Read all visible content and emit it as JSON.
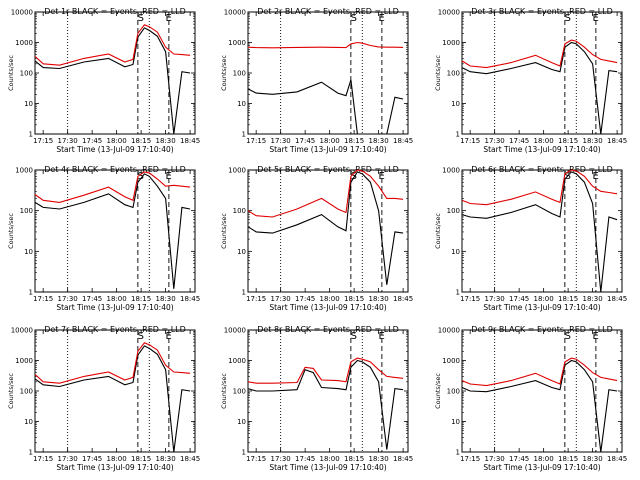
{
  "chart_data": [
    {
      "type": "line",
      "title": "Det 1r BLACK = Events, RED = LLD",
      "xlabel": "Start Time (13-Jul-09 17:10:40)",
      "ylabel": "Counts/sec",
      "yscale": "log",
      "ylim": [
        1,
        10000
      ],
      "x": [
        "17:10",
        "17:15",
        "17:25",
        "17:40",
        "17:55",
        "18:05",
        "18:10",
        "18:13",
        "18:17",
        "18:20",
        "18:25",
        "18:30",
        "18:35",
        "18:40",
        "18:45"
      ],
      "x_ticks": [
        "17:15",
        "17:30",
        "17:45",
        "18:00",
        "18:15",
        "18:30",
        "18:45"
      ],
      "series": [
        {
          "name": "BLACK",
          "color": "#000000",
          "values": [
            250,
            150,
            140,
            230,
            300,
            160,
            190,
            1500,
            3000,
            2500,
            1600,
            500,
            0.9,
            110,
            100
          ]
        },
        {
          "name": "RED",
          "color": "#e00000",
          "values": [
            350,
            200,
            180,
            300,
            420,
            230,
            280,
            2000,
            3800,
            3300,
            2200,
            700,
            420,
            400,
            380
          ]
        }
      ],
      "vlines": [
        {
          "x": "17:30",
          "style": "dotted"
        },
        {
          "x": "18:13",
          "style": "dashed"
        },
        {
          "x": "18:20",
          "style": "dotted"
        },
        {
          "x": "18:32",
          "style": "dashed"
        }
      ],
      "annotations": [
        "S",
        "E"
      ]
    },
    {
      "type": "line",
      "title": "Det 2r BLACK = Events, RED = LLD",
      "xlabel": "Start Time (13-Jul-09 17:10:40)",
      "ylabel": "Counts/sec",
      "yscale": "log",
      "ylim": [
        1,
        10000
      ],
      "x": [
        "17:10",
        "17:15",
        "17:25",
        "17:40",
        "17:55",
        "18:05",
        "18:10",
        "18:13",
        "18:17",
        "18:20",
        "18:25",
        "18:30",
        "18:35",
        "18:40",
        "18:45"
      ],
      "x_ticks": [
        "17:15",
        "17:30",
        "17:45",
        "18:00",
        "18:15",
        "18:30",
        "18:45"
      ],
      "series": [
        {
          "name": "BLACK",
          "color": "#000000",
          "values": [
            30,
            22,
            20,
            24,
            50,
            22,
            18,
            60,
            1,
            1,
            1,
            1,
            1,
            16,
            14
          ]
        },
        {
          "name": "RED",
          "color": "#e00000",
          "values": [
            700,
            680,
            670,
            690,
            700,
            690,
            680,
            900,
            1000,
            950,
            800,
            720,
            700,
            700,
            690
          ]
        }
      ],
      "vlines": [
        {
          "x": "17:30",
          "style": "dotted"
        },
        {
          "x": "18:13",
          "style": "dashed"
        },
        {
          "x": "18:20",
          "style": "dotted"
        },
        {
          "x": "18:32",
          "style": "dashed"
        }
      ],
      "annotations": [
        "S",
        "E"
      ]
    },
    {
      "type": "line",
      "title": "Det 3r BLACK = Events, RED = LLD",
      "xlabel": "Start Time (13-Jul-09 17:10:40)",
      "ylabel": "Counts/sec",
      "yscale": "log",
      "ylim": [
        1,
        10000
      ],
      "x": [
        "17:10",
        "17:15",
        "17:25",
        "17:40",
        "17:55",
        "18:05",
        "18:10",
        "18:13",
        "18:17",
        "18:20",
        "18:25",
        "18:30",
        "18:35",
        "18:40",
        "18:45"
      ],
      "x_ticks": [
        "17:15",
        "17:30",
        "17:45",
        "18:00",
        "18:15",
        "18:30",
        "18:45"
      ],
      "series": [
        {
          "name": "BLACK",
          "color": "#000000",
          "values": [
            150,
            110,
            95,
            140,
            220,
            130,
            110,
            700,
            1000,
            900,
            500,
            200,
            1,
            120,
            110
          ]
        },
        {
          "name": "RED",
          "color": "#e00000",
          "values": [
            250,
            170,
            150,
            220,
            380,
            220,
            170,
            900,
            1200,
            1100,
            700,
            400,
            280,
            250,
            220
          ]
        }
      ],
      "vlines": [
        {
          "x": "17:30",
          "style": "dotted"
        },
        {
          "x": "18:13",
          "style": "dashed"
        },
        {
          "x": "18:20",
          "style": "dotted"
        },
        {
          "x": "18:32",
          "style": "dashed"
        }
      ],
      "annotations": [
        "S",
        "E"
      ]
    },
    {
      "type": "line",
      "title": "Det 4r BLACK = Events, RED = LLD",
      "xlabel": "Start Time (13-Jul-09 17:10:40)",
      "ylabel": "Counts/sec",
      "yscale": "log",
      "ylim": [
        1,
        1000
      ],
      "x": [
        "17:10",
        "17:15",
        "17:25",
        "17:40",
        "17:55",
        "18:05",
        "18:10",
        "18:13",
        "18:17",
        "18:20",
        "18:25",
        "18:30",
        "18:35",
        "18:40",
        "18:45"
      ],
      "x_ticks": [
        "17:15",
        "17:30",
        "17:45",
        "18:00",
        "18:15",
        "18:30",
        "18:45"
      ],
      "series": [
        {
          "name": "BLACK",
          "color": "#000000",
          "values": [
            160,
            120,
            110,
            160,
            260,
            140,
            120,
            500,
            800,
            700,
            400,
            200,
            1.2,
            120,
            110
          ]
        },
        {
          "name": "RED",
          "color": "#e00000",
          "values": [
            250,
            180,
            160,
            240,
            380,
            220,
            180,
            700,
            900,
            850,
            600,
            400,
            420,
            400,
            380
          ]
        }
      ],
      "vlines": [
        {
          "x": "17:30",
          "style": "dotted"
        },
        {
          "x": "18:13",
          "style": "dashed"
        },
        {
          "x": "18:20",
          "style": "dotted"
        },
        {
          "x": "18:32",
          "style": "dashed"
        }
      ],
      "annotations": [
        "S",
        "E"
      ]
    },
    {
      "type": "line",
      "title": "Det 5r BLACK = Events, RED = LLD",
      "xlabel": "Start Time (13-Jul-09 17:10:40)",
      "ylabel": "Counts/sec",
      "yscale": "log",
      "ylim": [
        1,
        1000
      ],
      "x": [
        "17:10",
        "17:15",
        "17:25",
        "17:40",
        "17:55",
        "18:05",
        "18:10",
        "18:13",
        "18:17",
        "18:20",
        "18:25",
        "18:30",
        "18:35",
        "18:40",
        "18:45"
      ],
      "x_ticks": [
        "17:15",
        "17:30",
        "17:45",
        "18:00",
        "18:15",
        "18:30",
        "18:45"
      ],
      "series": [
        {
          "name": "BLACK",
          "color": "#000000",
          "values": [
            40,
            30,
            28,
            45,
            80,
            40,
            32,
            500,
            900,
            800,
            500,
            100,
            1.5,
            30,
            28
          ]
        },
        {
          "name": "RED",
          "color": "#e00000",
          "values": [
            100,
            75,
            70,
            110,
            200,
            110,
            90,
            700,
            1000,
            950,
            700,
            400,
            200,
            200,
            190
          ]
        }
      ],
      "vlines": [
        {
          "x": "17:30",
          "style": "dotted"
        },
        {
          "x": "18:13",
          "style": "dashed"
        },
        {
          "x": "18:20",
          "style": "dotted"
        },
        {
          "x": "18:32",
          "style": "dashed"
        }
      ],
      "annotations": [
        "S",
        "E"
      ]
    },
    {
      "type": "line",
      "title": "Det 6r BLACK = Events, RED = LLD",
      "xlabel": "Start Time (13-Jul-09 17:10:40)",
      "ylabel": "Counts/sec",
      "yscale": "log",
      "ylim": [
        1,
        1000
      ],
      "x": [
        "17:10",
        "17:15",
        "17:25",
        "17:40",
        "17:55",
        "18:05",
        "18:10",
        "18:13",
        "18:17",
        "18:20",
        "18:25",
        "18:30",
        "18:35",
        "18:40",
        "18:45"
      ],
      "x_ticks": [
        "17:15",
        "17:30",
        "17:45",
        "18:00",
        "18:15",
        "18:30",
        "18:45"
      ],
      "series": [
        {
          "name": "BLACK",
          "color": "#000000",
          "values": [
            80,
            70,
            65,
            90,
            140,
            85,
            70,
            600,
            900,
            800,
            500,
            150,
            1,
            70,
            60
          ]
        },
        {
          "name": "RED",
          "color": "#e00000",
          "values": [
            180,
            150,
            140,
            190,
            290,
            190,
            160,
            800,
            1000,
            950,
            700,
            400,
            300,
            280,
            260
          ]
        }
      ],
      "vlines": [
        {
          "x": "17:30",
          "style": "dotted"
        },
        {
          "x": "18:13",
          "style": "dashed"
        },
        {
          "x": "18:20",
          "style": "dotted"
        },
        {
          "x": "18:32",
          "style": "dashed"
        }
      ],
      "annotations": [
        "S",
        "E"
      ]
    },
    {
      "type": "line",
      "title": "Det 7r BLACK = Events, RED = LLD",
      "xlabel": "Start Time (13-Jul-09 17:10:40)",
      "ylabel": "Counts/sec",
      "yscale": "log",
      "ylim": [
        1,
        10000
      ],
      "x": [
        "17:10",
        "17:15",
        "17:25",
        "17:40",
        "17:55",
        "18:05",
        "18:10",
        "18:13",
        "18:17",
        "18:20",
        "18:25",
        "18:30",
        "18:35",
        "18:40",
        "18:45"
      ],
      "x_ticks": [
        "17:15",
        "17:30",
        "17:45",
        "18:00",
        "18:15",
        "18:30",
        "18:45"
      ],
      "series": [
        {
          "name": "BLACK",
          "color": "#000000",
          "values": [
            250,
            160,
            140,
            230,
            300,
            160,
            190,
            1500,
            3000,
            2500,
            1600,
            500,
            0.9,
            110,
            100
          ]
        },
        {
          "name": "RED",
          "color": "#e00000",
          "values": [
            350,
            200,
            180,
            300,
            420,
            230,
            280,
            2000,
            3800,
            3300,
            2200,
            700,
            420,
            400,
            380
          ]
        }
      ],
      "vlines": [
        {
          "x": "17:30",
          "style": "dotted"
        },
        {
          "x": "18:13",
          "style": "dashed"
        },
        {
          "x": "18:20",
          "style": "dotted"
        },
        {
          "x": "18:32",
          "style": "dashed"
        }
      ],
      "annotations": [
        "S",
        "E"
      ]
    },
    {
      "type": "line",
      "title": "Det 8r BLACK = Events, RED = LLD",
      "xlabel": "Start Time (13-Jul-09 17:10:40)",
      "ylabel": "Counts/sec",
      "yscale": "log",
      "ylim": [
        1,
        10000
      ],
      "x": [
        "17:10",
        "17:15",
        "17:25",
        "17:40",
        "17:45",
        "17:50",
        "17:55",
        "18:05",
        "18:10",
        "18:13",
        "18:17",
        "18:20",
        "18:25",
        "18:30",
        "18:35",
        "18:40",
        "18:45"
      ],
      "x_ticks": [
        "17:15",
        "17:30",
        "17:45",
        "18:00",
        "18:15",
        "18:30",
        "18:45"
      ],
      "series": [
        {
          "name": "BLACK",
          "color": "#000000",
          "values": [
            120,
            100,
            100,
            110,
            500,
            400,
            130,
            120,
            110,
            600,
            1000,
            900,
            600,
            200,
            1.2,
            120,
            110
          ]
        },
        {
          "name": "RED",
          "color": "#e00000",
          "values": [
            200,
            180,
            180,
            190,
            600,
            550,
            230,
            220,
            200,
            900,
            1200,
            1100,
            900,
            500,
            300,
            280,
            260
          ]
        }
      ],
      "vlines": [
        {
          "x": "17:30",
          "style": "dotted"
        },
        {
          "x": "18:13",
          "style": "dashed"
        },
        {
          "x": "18:20",
          "style": "dotted"
        },
        {
          "x": "18:32",
          "style": "dashed"
        }
      ],
      "annotations": [
        "S",
        "E"
      ]
    },
    {
      "type": "line",
      "title": "Det 9r BLACK = Events, RED = LLD",
      "xlabel": "Start Time (13-Jul-09 17:10:40)",
      "ylabel": "Counts/sec",
      "yscale": "log",
      "ylim": [
        1,
        10000
      ],
      "x": [
        "17:10",
        "17:15",
        "17:25",
        "17:40",
        "17:55",
        "18:05",
        "18:10",
        "18:13",
        "18:17",
        "18:20",
        "18:25",
        "18:30",
        "18:35",
        "18:40",
        "18:45"
      ],
      "x_ticks": [
        "17:15",
        "17:30",
        "17:45",
        "18:00",
        "18:15",
        "18:30",
        "18:45"
      ],
      "series": [
        {
          "name": "BLACK",
          "color": "#000000",
          "values": [
            130,
            100,
            95,
            140,
            220,
            130,
            110,
            700,
            1000,
            900,
            500,
            200,
            1,
            110,
            100
          ]
        },
        {
          "name": "RED",
          "color": "#e00000",
          "values": [
            220,
            170,
            150,
            220,
            380,
            220,
            170,
            900,
            1200,
            1100,
            700,
            400,
            280,
            250,
            220
          ]
        }
      ],
      "vlines": [
        {
          "x": "17:30",
          "style": "dotted"
        },
        {
          "x": "18:13",
          "style": "dashed"
        },
        {
          "x": "18:20",
          "style": "dotted"
        },
        {
          "x": "18:32",
          "style": "dashed"
        }
      ],
      "annotations": [
        "S",
        "E"
      ]
    }
  ]
}
